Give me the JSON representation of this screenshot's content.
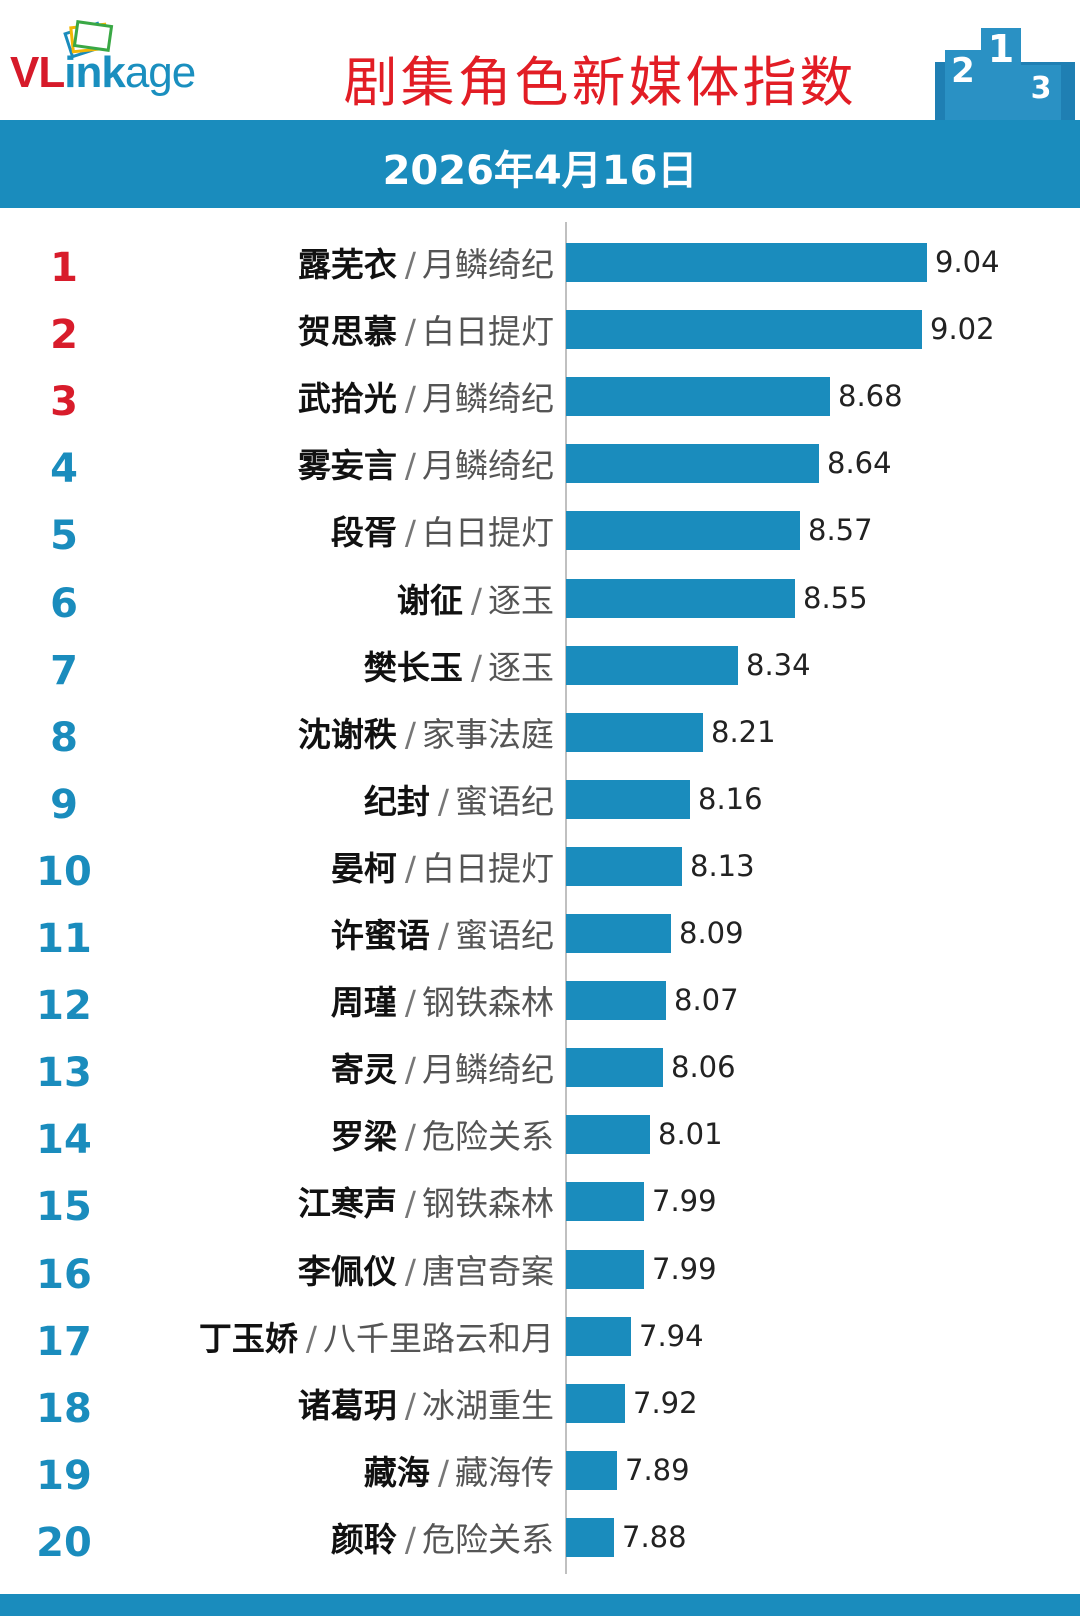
{
  "brand": {
    "part1": "VL",
    "part2": "ink",
    "part3": "age"
  },
  "title": "剧集角色新媒体指数",
  "date": "2026年4月16日",
  "colors": {
    "accent": "#1a8cbd",
    "title_red": "#e21d25",
    "top_rank": "#d81c2b"
  },
  "chart_data": {
    "type": "bar",
    "orientation": "horizontal",
    "title": "剧集角色新媒体指数",
    "subtitle": "2026年4月16日",
    "xlim": [
      7.7,
      9.1
    ],
    "items": [
      {
        "rank": "1",
        "character": "露芜衣",
        "drama": "月鳞绮纪",
        "value": 9.04,
        "label": "9.04"
      },
      {
        "rank": "2",
        "character": "贺思慕",
        "drama": "白日提灯",
        "value": 9.02,
        "label": "9.02"
      },
      {
        "rank": "3",
        "character": "武拾光",
        "drama": "月鳞绮纪",
        "value": 8.68,
        "label": "8.68"
      },
      {
        "rank": "4",
        "character": "雾妄言",
        "drama": "月鳞绮纪",
        "value": 8.64,
        "label": "8.64"
      },
      {
        "rank": "5",
        "character": "段胥",
        "drama": "白日提灯",
        "value": 8.57,
        "label": "8.57"
      },
      {
        "rank": "6",
        "character": "谢征",
        "drama": "逐玉",
        "value": 8.55,
        "label": "8.55"
      },
      {
        "rank": "7",
        "character": "樊长玉",
        "drama": "逐玉",
        "value": 8.34,
        "label": "8.34"
      },
      {
        "rank": "8",
        "character": "沈谢秩",
        "drama": "家事法庭",
        "value": 8.21,
        "label": "8.21"
      },
      {
        "rank": "9",
        "character": "纪封",
        "drama": "蜜语纪",
        "value": 8.16,
        "label": "8.16"
      },
      {
        "rank": "10",
        "character": "晏柯",
        "drama": "白日提灯",
        "value": 8.13,
        "label": "8.13"
      },
      {
        "rank": "11",
        "character": "许蜜语",
        "drama": "蜜语纪",
        "value": 8.09,
        "label": "8.09"
      },
      {
        "rank": "12",
        "character": "周瑾",
        "drama": "钢铁森林",
        "value": 8.07,
        "label": "8.07"
      },
      {
        "rank": "13",
        "character": "寄灵",
        "drama": "月鳞绮纪",
        "value": 8.06,
        "label": "8.06"
      },
      {
        "rank": "14",
        "character": "罗梁",
        "drama": "危险关系",
        "value": 8.01,
        "label": "8.01"
      },
      {
        "rank": "15",
        "character": "江寒声",
        "drama": "钢铁森林",
        "value": 7.99,
        "label": "7.99"
      },
      {
        "rank": "16",
        "character": "李佩仪",
        "drama": "唐宫奇案",
        "value": 7.99,
        "label": "7.99"
      },
      {
        "rank": "17",
        "character": "丁玉娇",
        "drama": "八千里路云和月",
        "value": 7.94,
        "label": "7.94"
      },
      {
        "rank": "18",
        "character": "诸葛玥",
        "drama": "冰湖重生",
        "value": 7.92,
        "label": "7.92"
      },
      {
        "rank": "19",
        "character": "藏海",
        "drama": "藏海传",
        "value": 7.89,
        "label": "7.89"
      },
      {
        "rank": "20",
        "character": "颜聆",
        "drama": "危险关系",
        "value": 7.88,
        "label": "7.88"
      }
    ]
  }
}
